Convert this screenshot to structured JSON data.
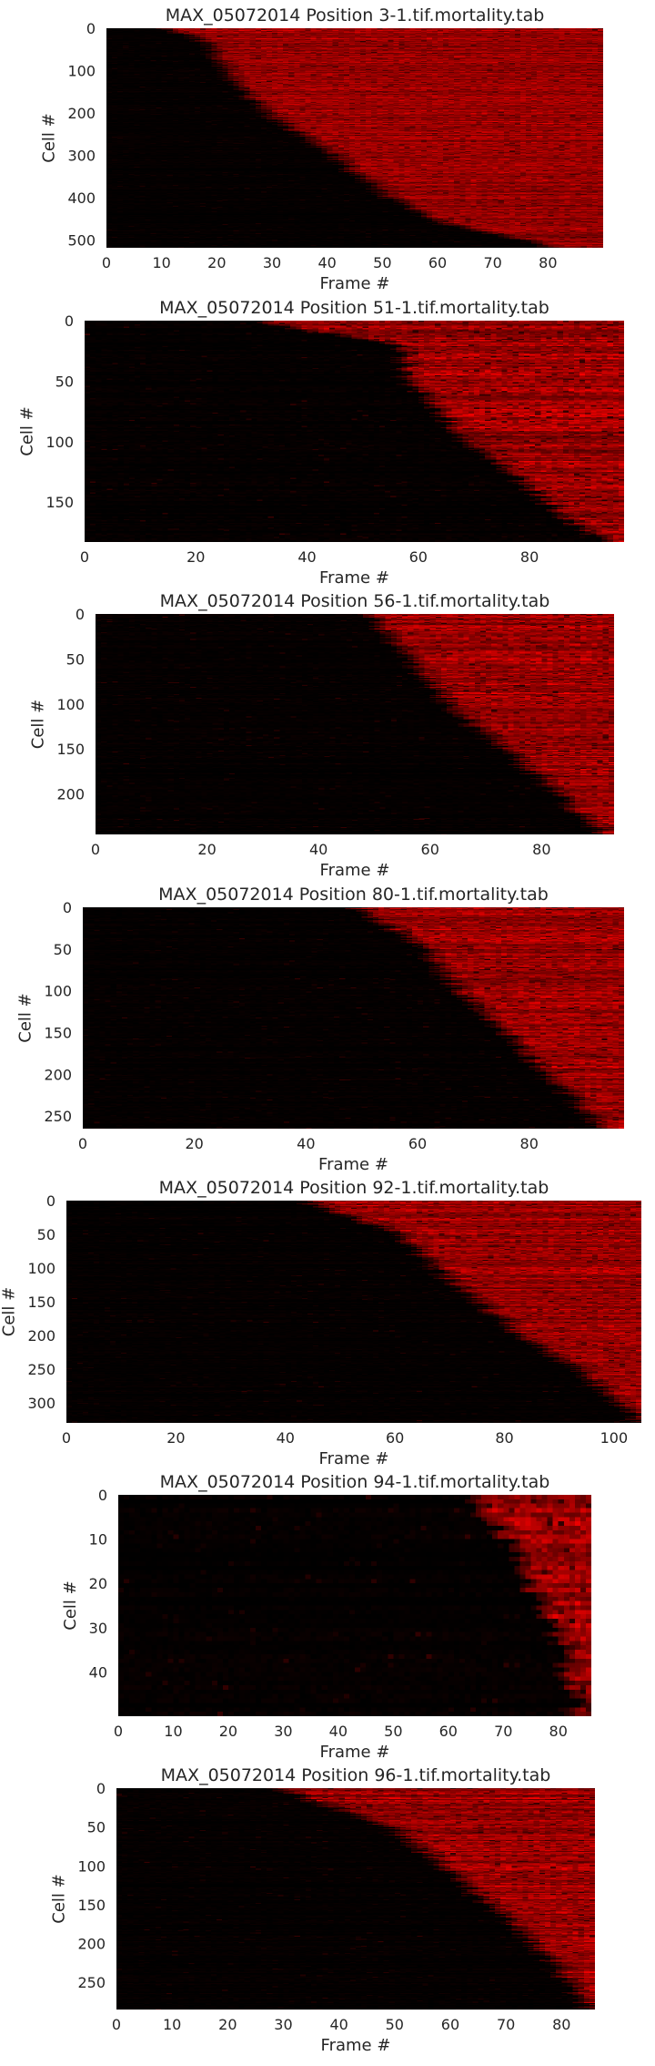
{
  "chart_data": [
    {
      "type": "heatmap",
      "title": "MAX_05072014 Position 3-1.tif.mortality.tab",
      "xlabel": "Frame #",
      "ylabel": "Cell #",
      "n_frames": 90,
      "n_cells": 518,
      "xticks": [
        0,
        10,
        20,
        30,
        40,
        50,
        60,
        70,
        80
      ],
      "yticks": [
        0,
        100,
        200,
        300,
        400,
        500
      ],
      "death_front": [
        [
          0,
          10
        ],
        [
          40,
          18
        ],
        [
          100,
          20
        ],
        [
          200,
          28
        ],
        [
          300,
          40
        ],
        [
          400,
          50
        ],
        [
          460,
          60
        ],
        [
          500,
          75
        ],
        [
          518,
          80
        ]
      ],
      "colormap": [
        "#000000",
        "#ff0000"
      ],
      "grid": false
    },
    {
      "type": "heatmap",
      "title": "MAX_05072014 Position 51-1.tif.mortality.tab",
      "xlabel": "Frame #",
      "ylabel": "Cell #",
      "n_frames": 97,
      "n_cells": 183,
      "xticks": [
        0,
        20,
        40,
        60,
        80
      ],
      "yticks": [
        0,
        50,
        100,
        150
      ],
      "death_front": [
        [
          0,
          30
        ],
        [
          10,
          42
        ],
        [
          20,
          56
        ],
        [
          50,
          57
        ],
        [
          100,
          68
        ],
        [
          150,
          82
        ],
        [
          183,
          92
        ]
      ],
      "colormap": [
        "#000000",
        "#ff0000"
      ],
      "grid": false
    },
    {
      "type": "heatmap",
      "title": "MAX_05072014 Position 56-1.tif.mortality.tab",
      "xlabel": "Frame #",
      "ylabel": "Cell #",
      "n_frames": 93,
      "n_cells": 245,
      "xticks": [
        0,
        20,
        40,
        60,
        80
      ],
      "yticks": [
        0,
        50,
        100,
        150,
        200
      ],
      "death_front": [
        [
          0,
          48
        ],
        [
          50,
          55
        ],
        [
          100,
          62
        ],
        [
          150,
          72
        ],
        [
          200,
          82
        ],
        [
          245,
          90
        ]
      ],
      "colormap": [
        "#000000",
        "#ff0000"
      ],
      "grid": false
    },
    {
      "type": "heatmap",
      "title": "MAX_05072014 Position 80-1.tif.mortality.tab",
      "xlabel": "Frame #",
      "ylabel": "Cell #",
      "n_frames": 97,
      "n_cells": 265,
      "xticks": [
        0,
        20,
        40,
        60,
        80
      ],
      "yticks": [
        0,
        50,
        100,
        150,
        200,
        250
      ],
      "death_front": [
        [
          0,
          48
        ],
        [
          50,
          60
        ],
        [
          100,
          66
        ],
        [
          150,
          75
        ],
        [
          200,
          82
        ],
        [
          265,
          92
        ]
      ],
      "colormap": [
        "#000000",
        "#ff0000"
      ],
      "grid": false
    },
    {
      "type": "heatmap",
      "title": "MAX_05072014 Position 92-1.tif.mortality.tab",
      "xlabel": "Frame #",
      "ylabel": "Cell #",
      "n_frames": 105,
      "n_cells": 330,
      "xticks": [
        0,
        20,
        40,
        60,
        80,
        100
      ],
      "yticks": [
        0,
        50,
        100,
        150,
        200,
        250,
        300
      ],
      "death_front": [
        [
          0,
          42
        ],
        [
          50,
          60
        ],
        [
          100,
          66
        ],
        [
          150,
          74
        ],
        [
          200,
          82
        ],
        [
          250,
          92
        ],
        [
          300,
          100
        ],
        [
          330,
          104
        ]
      ],
      "colormap": [
        "#000000",
        "#ff0000"
      ],
      "grid": false
    },
    {
      "type": "heatmap",
      "title": "MAX_05072014 Position 94-1.tif.mortality.tab",
      "xlabel": "Frame #",
      "ylabel": "Cell #",
      "n_frames": 86,
      "n_cells": 50,
      "xticks": [
        0,
        10,
        20,
        30,
        40,
        50,
        60,
        70,
        80
      ],
      "yticks": [
        0,
        10,
        20,
        30,
        40
      ],
      "death_front": [
        [
          0,
          62
        ],
        [
          10,
          70
        ],
        [
          20,
          74
        ],
        [
          30,
          78
        ],
        [
          40,
          80
        ],
        [
          50,
          83
        ]
      ],
      "colormap": [
        "#000000",
        "#ff0000"
      ],
      "grid": false
    },
    {
      "type": "heatmap",
      "title": "MAX_05072014 Position 96-1.tif.mortality.tab",
      "xlabel": "Frame #",
      "ylabel": "Cell #",
      "n_frames": 86,
      "n_cells": 285,
      "xticks": [
        0,
        10,
        20,
        30,
        40,
        50,
        60,
        70,
        80
      ],
      "yticks": [
        0,
        50,
        100,
        150,
        200,
        250
      ],
      "death_front": [
        [
          0,
          28
        ],
        [
          50,
          48
        ],
        [
          100,
          58
        ],
        [
          150,
          66
        ],
        [
          200,
          74
        ],
        [
          250,
          80
        ],
        [
          285,
          84
        ]
      ],
      "colormap": [
        "#000000",
        "#ff0000"
      ],
      "grid": false
    }
  ]
}
